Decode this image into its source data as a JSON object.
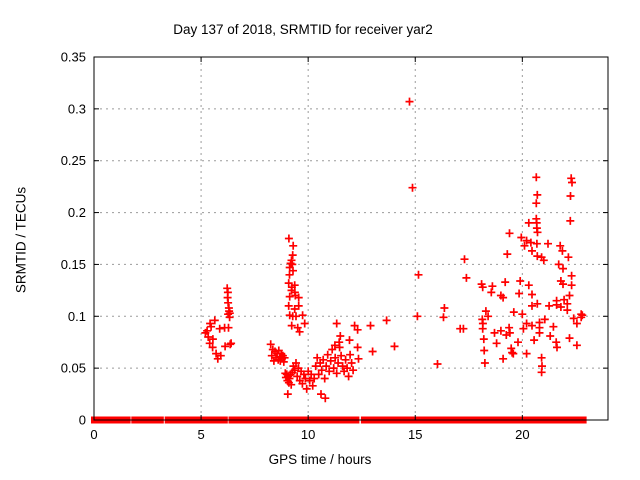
{
  "chart_data": {
    "type": "scatter",
    "title": "Day 137 of 2018, SRMTID for receiver yar2",
    "xlabel": "GPS time / hours",
    "ylabel": "SRMTID / TECUs",
    "xlim": [
      0,
      24
    ],
    "ylim": [
      0,
      0.35
    ],
    "xticks": [
      0,
      5,
      10,
      15,
      20
    ],
    "xtick_labels": [
      "0",
      "5",
      "10",
      "15",
      "20"
    ],
    "yticks": [
      0,
      0.05,
      0.1,
      0.15,
      0.2,
      0.25,
      0.3,
      0.35
    ],
    "ytick_labels": [
      "0",
      "0.05",
      "0.1",
      "0.15",
      "0.2",
      "0.25",
      "0.3",
      "0.35"
    ],
    "grid": "dashed",
    "legend": "none",
    "marker": "plus",
    "colors": {
      "marker": "#ff0000",
      "grid": "#9b9b9b",
      "axis": "#000000",
      "background": "#ffffff"
    },
    "zero_band_segments": [
      [
        0,
        0.2
      ],
      [
        0.31,
        1.57
      ],
      [
        1.88,
        2.25
      ],
      [
        2.38,
        2.63
      ],
      [
        2.77,
        3.12
      ],
      [
        3.44,
        4.32
      ],
      [
        4.52,
        5.22
      ],
      [
        5.44,
        6.11
      ],
      [
        6.42,
        7.23
      ],
      [
        7.4,
        7.85
      ],
      [
        8.05,
        9.09
      ],
      [
        9.18,
        9.79
      ],
      [
        9.96,
        10.46
      ],
      [
        10.51,
        10.65
      ],
      [
        10.8,
        12.25
      ],
      [
        12.6,
        13.25
      ],
      [
        13.37,
        13.47
      ],
      [
        13.55,
        17.47
      ],
      [
        17.53,
        17.58
      ],
      [
        17.68,
        19.92
      ],
      [
        20.14,
        20.34
      ],
      [
        20.42,
        20.56
      ],
      [
        20.62,
        20.71
      ],
      [
        20.76,
        20.93
      ],
      [
        21.02,
        22.86
      ]
    ],
    "series": [
      {
        "name": "SRMTID",
        "points": [
          [
            5.2,
            0.084
          ],
          [
            5.28,
            0.086
          ],
          [
            5.33,
            0.08
          ],
          [
            5.42,
            0.093
          ],
          [
            5.47,
            0.09
          ],
          [
            5.55,
            0.078
          ],
          [
            5.64,
            0.096
          ],
          [
            5.4,
            0.074
          ],
          [
            5.54,
            0.07
          ],
          [
            5.7,
            0.064
          ],
          [
            5.78,
            0.059
          ],
          [
            5.87,
            0.088
          ],
          [
            5.92,
            0.062
          ],
          [
            6.22,
            0.127
          ],
          [
            6.25,
            0.123
          ],
          [
            6.24,
            0.118
          ],
          [
            6.26,
            0.113
          ],
          [
            6.3,
            0.108
          ],
          [
            6.31,
            0.105
          ],
          [
            6.26,
            0.102
          ],
          [
            6.34,
            0.103
          ],
          [
            6.33,
            0.099
          ],
          [
            6.28,
            0.089
          ],
          [
            6.1,
            0.089
          ],
          [
            6.12,
            0.071
          ],
          [
            6.36,
            0.073
          ],
          [
            6.4,
            0.074
          ],
          [
            9.1,
            0.175
          ],
          [
            9.3,
            0.168
          ],
          [
            9.28,
            0.159
          ],
          [
            9.22,
            0.154
          ],
          [
            9.18,
            0.151
          ],
          [
            9.26,
            0.15
          ],
          [
            9.14,
            0.147
          ],
          [
            9.29,
            0.144
          ],
          [
            9.13,
            0.14
          ],
          [
            9.09,
            0.132
          ],
          [
            9.24,
            0.128
          ],
          [
            9.37,
            0.13
          ],
          [
            9.22,
            0.125
          ],
          [
            9.38,
            0.123
          ],
          [
            9.14,
            0.119
          ],
          [
            9.4,
            0.12
          ],
          [
            9.56,
            0.118
          ],
          [
            9.09,
            0.11
          ],
          [
            9.56,
            0.11
          ],
          [
            9.37,
            0.107
          ],
          [
            9.14,
            0.101
          ],
          [
            9.28,
            0.1
          ],
          [
            9.43,
            0.1
          ],
          [
            9.74,
            0.101
          ],
          [
            9.23,
            0.091
          ],
          [
            9.51,
            0.089
          ],
          [
            9.84,
            0.093
          ],
          [
            9.6,
            0.085
          ],
          [
            8.25,
            0.073
          ],
          [
            8.3,
            0.062
          ],
          [
            8.35,
            0.068
          ],
          [
            8.4,
            0.057
          ],
          [
            8.45,
            0.066
          ],
          [
            8.5,
            0.06
          ],
          [
            8.55,
            0.064
          ],
          [
            8.6,
            0.058
          ],
          [
            8.63,
            0.067
          ],
          [
            8.67,
            0.061
          ],
          [
            8.7,
            0.057
          ],
          [
            8.74,
            0.064
          ],
          [
            8.78,
            0.059
          ],
          [
            8.82,
            0.062
          ],
          [
            8.86,
            0.056
          ],
          [
            8.9,
            0.06
          ],
          [
            8.93,
            0.045
          ],
          [
            8.96,
            0.041
          ],
          [
            9.0,
            0.044
          ],
          [
            9.03,
            0.038
          ],
          [
            9.06,
            0.042
          ],
          [
            9.1,
            0.036
          ],
          [
            9.13,
            0.04
          ],
          [
            9.05,
            0.025
          ],
          [
            9.17,
            0.044
          ],
          [
            9.21,
            0.034
          ],
          [
            9.26,
            0.046
          ],
          [
            9.31,
            0.052
          ],
          [
            9.37,
            0.048
          ],
          [
            9.43,
            0.055
          ],
          [
            9.49,
            0.042
          ],
          [
            9.55,
            0.05
          ],
          [
            9.61,
            0.038
          ],
          [
            9.67,
            0.047
          ],
          [
            9.73,
            0.035
          ],
          [
            9.8,
            0.044
          ],
          [
            9.87,
            0.04
          ],
          [
            9.93,
            0.03
          ],
          [
            10.0,
            0.047
          ],
          [
            10.07,
            0.038
          ],
          [
            10.14,
            0.044
          ],
          [
            10.21,
            0.033
          ],
          [
            10.28,
            0.04
          ],
          [
            10.6,
            0.025
          ],
          [
            10.8,
            0.021
          ],
          [
            10.35,
            0.052
          ],
          [
            10.42,
            0.06
          ],
          [
            10.49,
            0.044
          ],
          [
            10.56,
            0.055
          ],
          [
            10.63,
            0.048
          ],
          [
            10.7,
            0.058
          ],
          [
            10.77,
            0.04
          ],
          [
            10.84,
            0.052
          ],
          [
            10.91,
            0.063
          ],
          [
            10.98,
            0.047
          ],
          [
            11.05,
            0.057
          ],
          [
            11.12,
            0.068
          ],
          [
            11.19,
            0.05
          ],
          [
            11.26,
            0.06
          ],
          [
            11.33,
            0.045
          ],
          [
            11.4,
            0.055
          ],
          [
            11.47,
            0.07
          ],
          [
            11.54,
            0.062
          ],
          [
            11.61,
            0.052
          ],
          [
            11.68,
            0.047
          ],
          [
            11.75,
            0.058
          ],
          [
            11.82,
            0.05
          ],
          [
            11.89,
            0.042
          ],
          [
            11.96,
            0.063
          ],
          [
            12.03,
            0.055
          ],
          [
            12.1,
            0.048
          ],
          [
            11.33,
            0.093
          ],
          [
            12.17,
            0.091
          ],
          [
            11.5,
            0.081
          ],
          [
            11.25,
            0.072
          ],
          [
            11.45,
            0.075
          ],
          [
            12.31,
            0.087
          ],
          [
            12.91,
            0.091
          ],
          [
            11.93,
            0.077
          ],
          [
            12.35,
            0.059
          ],
          [
            12.31,
            0.07
          ],
          [
            13.01,
            0.066
          ],
          [
            14.03,
            0.071
          ],
          [
            13.66,
            0.096
          ],
          [
            14.73,
            0.307
          ],
          [
            14.87,
            0.224
          ],
          [
            15.15,
            0.14
          ],
          [
            15.1,
            0.1
          ],
          [
            16.32,
            0.099
          ],
          [
            16.36,
            0.108
          ],
          [
            16.04,
            0.054
          ],
          [
            20.65,
            0.234
          ],
          [
            22.28,
            0.233
          ],
          [
            22.32,
            0.229
          ],
          [
            20.7,
            0.217
          ],
          [
            22.25,
            0.216
          ],
          [
            20.65,
            0.209
          ],
          [
            20.65,
            0.194
          ],
          [
            20.67,
            0.19
          ],
          [
            20.3,
            0.19
          ],
          [
            22.24,
            0.192
          ],
          [
            20.68,
            0.185
          ],
          [
            20.71,
            0.181
          ],
          [
            19.4,
            0.18
          ],
          [
            19.95,
            0.176
          ],
          [
            20.2,
            0.173
          ],
          [
            20.4,
            0.171
          ],
          [
            20.1,
            0.168
          ],
          [
            20.68,
            0.17
          ],
          [
            21.2,
            0.17
          ],
          [
            21.77,
            0.168
          ],
          [
            20.45,
            0.163
          ],
          [
            21.87,
            0.163
          ],
          [
            19.3,
            0.16
          ],
          [
            20.7,
            0.158
          ],
          [
            22.15,
            0.157
          ],
          [
            17.3,
            0.155
          ],
          [
            20.9,
            0.157
          ],
          [
            21.0,
            0.154
          ],
          [
            21.7,
            0.15
          ],
          [
            21.9,
            0.146
          ],
          [
            17.39,
            0.137
          ],
          [
            22.3,
            0.139
          ],
          [
            21.8,
            0.134
          ],
          [
            22.3,
            0.13
          ],
          [
            18.1,
            0.131
          ],
          [
            18.6,
            0.129
          ],
          [
            19.2,
            0.133
          ],
          [
            19.9,
            0.134
          ],
          [
            20.3,
            0.13
          ],
          [
            21.9,
            0.131
          ],
          [
            18.55,
            0.123
          ],
          [
            19.0,
            0.12
          ],
          [
            19.1,
            0.118
          ],
          [
            19.85,
            0.122
          ],
          [
            20.45,
            0.121
          ],
          [
            22.2,
            0.12
          ],
          [
            21.95,
            0.116
          ],
          [
            21.6,
            0.115
          ],
          [
            20.7,
            0.112
          ],
          [
            20.45,
            0.11
          ],
          [
            22.1,
            0.112
          ],
          [
            21.6,
            0.111
          ],
          [
            21.25,
            0.11
          ],
          [
            21.8,
            0.109
          ],
          [
            22.1,
            0.106
          ],
          [
            18.4,
            0.1
          ],
          [
            19.6,
            0.104
          ],
          [
            20.0,
            0.102
          ],
          [
            22.75,
            0.102
          ],
          [
            22.8,
            0.101
          ],
          [
            22.75,
            0.099
          ],
          [
            22.4,
            0.098
          ],
          [
            18.3,
            0.105
          ],
          [
            18.15,
            0.128
          ],
          [
            18.13,
            0.097
          ],
          [
            18.16,
            0.093
          ],
          [
            18.15,
            0.088
          ],
          [
            18.7,
            0.084
          ],
          [
            19.0,
            0.086
          ],
          [
            19.38,
            0.089
          ],
          [
            19.42,
            0.084
          ],
          [
            20.2,
            0.093
          ],
          [
            20.45,
            0.091
          ],
          [
            20.8,
            0.094
          ],
          [
            20.8,
            0.089
          ],
          [
            20.8,
            0.084
          ],
          [
            22.55,
            0.093
          ],
          [
            17.1,
            0.088
          ],
          [
            18.2,
            0.078
          ],
          [
            18.22,
            0.067
          ],
          [
            18.8,
            0.074
          ],
          [
            19.48,
            0.069
          ],
          [
            19.52,
            0.065
          ],
          [
            19.58,
            0.064
          ],
          [
            20.2,
            0.064
          ],
          [
            20.9,
            0.06
          ],
          [
            20.92,
            0.052
          ],
          [
            21.58,
            0.075
          ],
          [
            21.62,
            0.07
          ],
          [
            22.2,
            0.079
          ],
          [
            22.55,
            0.072
          ],
          [
            18.25,
            0.055
          ],
          [
            20.9,
            0.046
          ],
          [
            19.1,
            0.059
          ],
          [
            21.3,
            0.081
          ],
          [
            20.55,
            0.077
          ],
          [
            19.8,
            0.075
          ],
          [
            17.25,
            0.088
          ],
          [
            19.25,
            0.082
          ],
          [
            20.05,
            0.088
          ],
          [
            21.05,
            0.097
          ],
          [
            21.45,
            0.09
          ]
        ]
      }
    ]
  }
}
